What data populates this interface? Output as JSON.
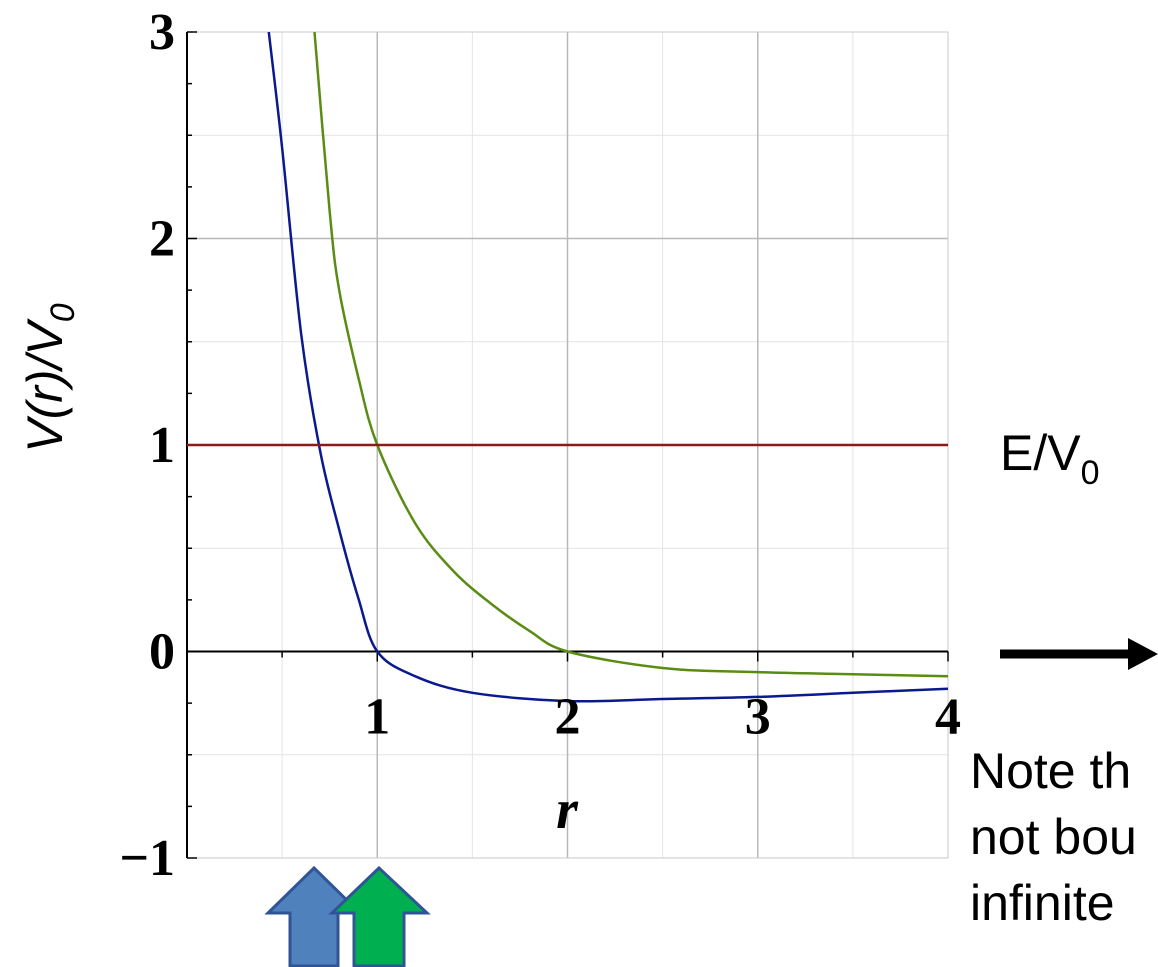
{
  "chart_data": {
    "type": "line",
    "xlabel": "r",
    "ylabel_main": "V(r)/V",
    "ylabel_sub": "0",
    "xlim": [
      0,
      4
    ],
    "ylim": [
      -1,
      3
    ],
    "x_ticks": [
      "1",
      "2",
      "3",
      "4"
    ],
    "y_ticks": [
      "−1",
      "0",
      "1",
      "2",
      "3"
    ],
    "grid": true,
    "series": [
      {
        "color": "#0a1a8c",
        "x": [
          0.43,
          0.5,
          0.6,
          0.7,
          0.8,
          0.9,
          1.0,
          1.2,
          1.5,
          2.0,
          2.5,
          3.0,
          3.5,
          4.0
        ],
        "y": [
          3.0,
          2.44,
          1.54,
          0.97,
          0.59,
          0.26,
          0.0,
          -0.12,
          -0.2,
          -0.24,
          -0.23,
          -0.22,
          -0.2,
          -0.18
        ]
      },
      {
        "color": "#5a8c14",
        "x": [
          0.67,
          0.75,
          0.8,
          0.9,
          1.0,
          1.2,
          1.4,
          1.6,
          1.8,
          2.0,
          2.5,
          3.0,
          3.5,
          4.0
        ],
        "y": [
          3.0,
          2.13,
          1.75,
          1.33,
          1.0,
          0.62,
          0.39,
          0.23,
          0.1,
          0.0,
          -0.08,
          -0.1,
          -0.11,
          -0.12
        ]
      },
      {
        "color": "#8b1a1a",
        "x": [
          0.0,
          4.0
        ],
        "y": [
          1.0,
          1.0
        ]
      }
    ],
    "annotations": {
      "energy_label_main": "E/V",
      "energy_label_sub": "0",
      "note_lines": [
        "Note th",
        "not bou",
        "infinite"
      ]
    }
  },
  "colors": {
    "arrow_blue": "#4f81bd",
    "arrow_green": "#00b050",
    "arrow_stroke": "#2f5597"
  }
}
